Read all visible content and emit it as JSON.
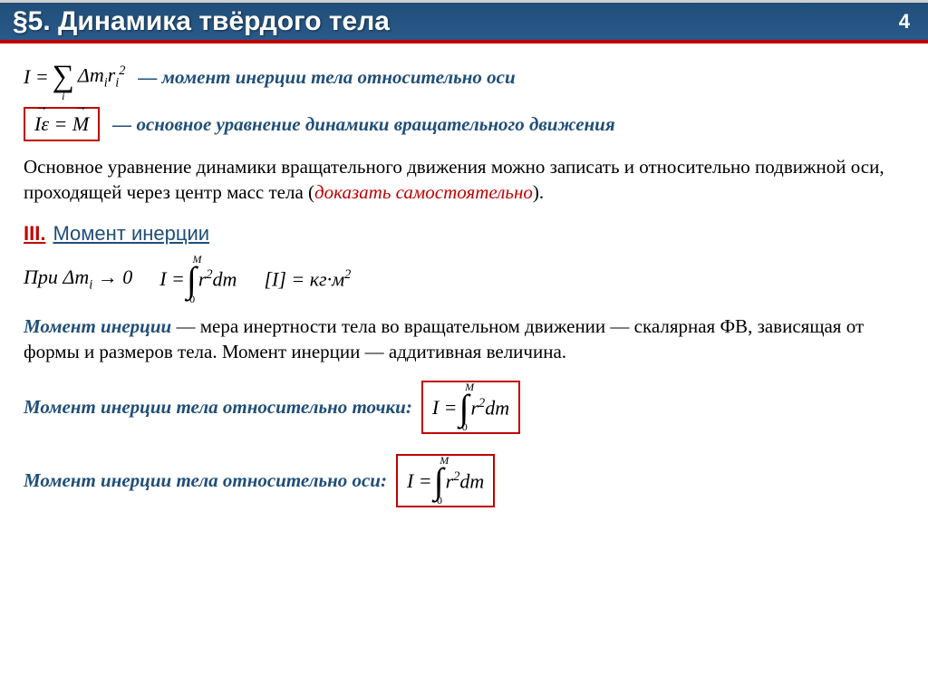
{
  "header": {
    "title": "§5. Динамика твёрдого тела",
    "page": "4"
  },
  "colors": {
    "header_bg": "#1f4e79",
    "accent_red": "#c00000",
    "text_blue": "#1f4e79",
    "text_black": "#000000",
    "bg": "#ffffff"
  },
  "formula1": {
    "lhs": "I =",
    "sigma_sub": "i",
    "rhs": "Δmᵢrᵢ²",
    "desc": "— момент инерции тела относительно оси"
  },
  "formula2": {
    "expr_lhs": "Iε",
    "expr_rhs": "M",
    "desc": "— основное уравнение динамики вращательного движения"
  },
  "paragraph1": {
    "text_pre": "Основное уравнение динамики вращательного движения можно записать и относительно подвижной оси, проходящей через центр масс тела (",
    "red": "доказать самостоятельно",
    "text_post": ")."
  },
  "section3": {
    "roman": "III.",
    "title": "Момент инерции"
  },
  "row3": {
    "pre": "При Δmᵢ → 0",
    "int_lhs": "I =",
    "int_upper": "M",
    "int_lower": "0",
    "int_body": "r²dm",
    "units": "[I] = кг·м²"
  },
  "definition": {
    "term": "Момент инерции",
    "body": " — мера инертности тела во вращательном движении — скалярная ФВ, зависящая от формы и размеров тела. Момент инерции — аддитивная величина."
  },
  "point": {
    "label": "Момент инерции тела относительно точки:",
    "int_lhs": "I =",
    "int_upper": "M",
    "int_lower": "0",
    "int_body": "r²dm"
  },
  "axis": {
    "label": "Момент инерции тела относительно оси:",
    "int_lhs": "I =",
    "int_upper": "M",
    "int_lower": "0",
    "int_body": "r²dm"
  }
}
